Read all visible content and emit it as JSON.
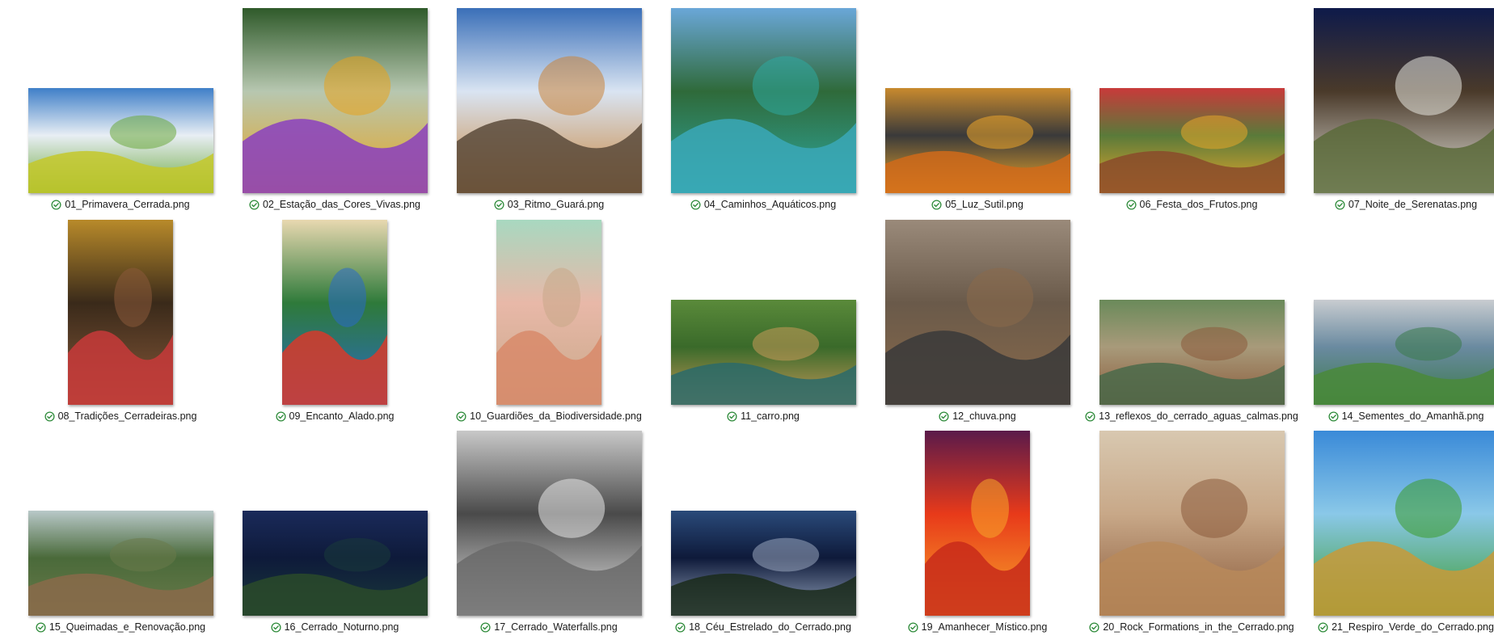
{
  "status_icon": "synced-check-icon",
  "status_color": "#2e8b3a",
  "files": [
    {
      "name": "01_Primavera_Cerrada.png",
      "orientation": "landscape",
      "colors": [
        "#3f7fc8",
        "#e8eef4",
        "#6aa83a",
        "#c4c82a"
      ]
    },
    {
      "name": "02_Estação_das_Cores_Vivas.png",
      "orientation": "square",
      "colors": [
        "#2f5a2a",
        "#b7c7b0",
        "#e8a21c",
        "#8a3fc0"
      ]
    },
    {
      "name": "03_Ritmo_Guará.png",
      "orientation": "square",
      "colors": [
        "#3a6fb8",
        "#d9e4f2",
        "#c8843a",
        "#5a4a3a"
      ]
    },
    {
      "name": "04_Caminhos_Aquáticos.png",
      "orientation": "square",
      "colors": [
        "#6aa7d8",
        "#2f6a3a",
        "#2ea9a0",
        "#3aa8b8"
      ]
    },
    {
      "name": "05_Luz_Sutil.png",
      "orientation": "landscape",
      "colors": [
        "#c88a2e",
        "#3a3a3a",
        "#f0a82a",
        "#d06a1a"
      ]
    },
    {
      "name": "06_Festa_dos_Frutos.png",
      "orientation": "landscape",
      "colors": [
        "#c83a3a",
        "#5a7a3a",
        "#e8a82a",
        "#8a4a2a"
      ]
    },
    {
      "name": "07_Noite_de_Serenatas.png",
      "orientation": "square",
      "colors": [
        "#0e1a4a",
        "#4a3a2a",
        "#e8e8e0",
        "#5a6a3a"
      ]
    },
    {
      "name": "08_Tradições_Cerradeiras.png",
      "orientation": "portrait",
      "colors": [
        "#b88a2a",
        "#3a2a1a",
        "#8a5a3a",
        "#c83a3a"
      ]
    },
    {
      "name": "09_Encanto_Alado.png",
      "orientation": "portrait",
      "colors": [
        "#e8d8b0",
        "#2e7a3a",
        "#2a6ac8",
        "#d83a2a"
      ]
    },
    {
      "name": "10_Guardiões_da_Biodiversidade.png",
      "orientation": "portrait",
      "colors": [
        "#a8d8c0",
        "#e8b8a8",
        "#c8a888",
        "#d88a6a"
      ]
    },
    {
      "name": "11_carro.png",
      "orientation": "landscape",
      "colors": [
        "#5a8a3a",
        "#3a6a2a",
        "#c89a5a",
        "#2a6a6a"
      ]
    },
    {
      "name": "12_chuva.png",
      "orientation": "square",
      "colors": [
        "#9a8a7a",
        "#6a5a4a",
        "#8a6a4a",
        "#3a3a3a"
      ]
    },
    {
      "name": "13_reflexos_do_cerrado_aguas_calmas.png",
      "orientation": "landscape",
      "colors": [
        "#6a8a5a",
        "#a89a7a",
        "#8a5a3a",
        "#4a6a4a"
      ]
    },
    {
      "name": "14_Sementes_do_Amanhã.png",
      "orientation": "landscape",
      "colors": [
        "#c8ccd0",
        "#6a8aa0",
        "#3a7a4a",
        "#4a8a3a"
      ]
    },
    {
      "name": "15_Queimadas_e_Renovação.png",
      "orientation": "landscape",
      "colors": [
        "#b8c8c8",
        "#4a6a3a",
        "#6a7a4a",
        "#8a6a4a"
      ]
    },
    {
      "name": "16_Cerrado_Noturno.png",
      "orientation": "landscape",
      "colors": [
        "#1a2a5a",
        "#0e1a3a",
        "#1a3a3a",
        "#2a4a2a"
      ]
    },
    {
      "name": "17_Cerrado_Waterfalls.png",
      "orientation": "square",
      "colors": [
        "#c8c8c8",
        "#4a4a4a",
        "#e8e8e8",
        "#6a6a6a"
      ]
    },
    {
      "name": "18_Céu_Estrelado_do_Cerrado.png",
      "orientation": "landscape",
      "colors": [
        "#2a4a7a",
        "#0e1a3a",
        "#9aa8c0",
        "#1a2a1a"
      ]
    },
    {
      "name": "19_Amanhecer_Místico.png",
      "orientation": "portrait",
      "colors": [
        "#5a1a4a",
        "#e83a1a",
        "#f8a82a",
        "#c82a1a"
      ]
    },
    {
      "name": "20_Rock_Formations_in_the_Cerrado.png",
      "orientation": "square",
      "colors": [
        "#d8c8b0",
        "#c8a888",
        "#8a5a3a",
        "#b88a5a"
      ]
    },
    {
      "name": "21_Respiro_Verde_do_Cerrado.png",
      "orientation": "square",
      "colors": [
        "#3a8ad8",
        "#8ac8e8",
        "#3a9a2a",
        "#c89a3a"
      ]
    }
  ]
}
